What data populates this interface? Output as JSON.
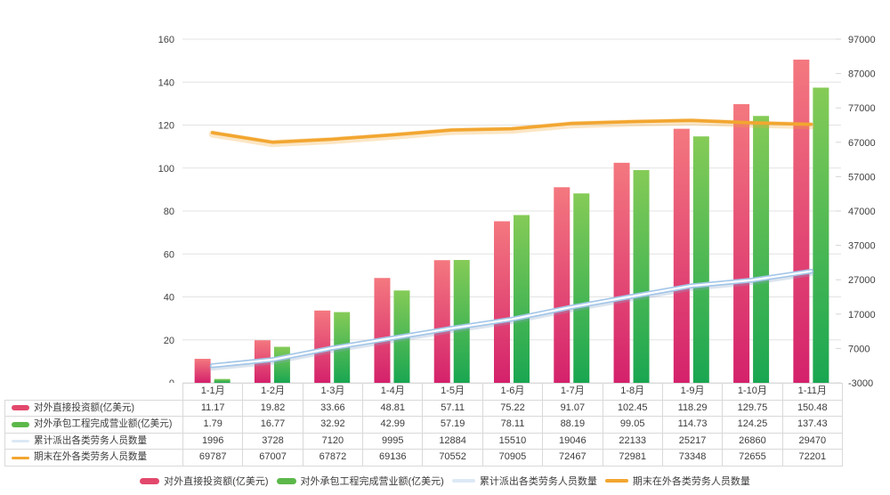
{
  "chart_data": {
    "type": "combo",
    "title": "",
    "categories": [
      "1-1月",
      "1-2月",
      "1-3月",
      "1-4月",
      "1-5月",
      "1-6月",
      "1-7月",
      "1-8月",
      "1-9月",
      "1-10月",
      "1-11月"
    ],
    "series": [
      {
        "name": "对外直接投资额(亿美元)",
        "type": "bar",
        "axis": "left",
        "values": [
          11.17,
          19.82,
          33.66,
          48.81,
          57.11,
          75.22,
          91.07,
          102.45,
          118.29,
          129.75,
          150.48
        ],
        "color_top": "#F4787F",
        "color_bottom": "#D4216B",
        "swatch": "#E2486C"
      },
      {
        "name": "对外承包工程完成营业额(亿美元)",
        "type": "bar",
        "axis": "left",
        "values": [
          1.79,
          16.77,
          32.92,
          42.99,
          57.19,
          78.11,
          88.19,
          99.05,
          114.73,
          124.25,
          137.43
        ],
        "color_top": "#85CB57",
        "color_bottom": "#19A651",
        "swatch": "#5CB84A"
      },
      {
        "name": "累计派出各类劳务人员数量",
        "type": "line",
        "axis": "right",
        "line_style": "ribbon",
        "values": [
          1996,
          3728,
          7120,
          9995,
          12884,
          15510,
          19046,
          22133,
          25217,
          26860,
          29470
        ],
        "color": "#A3C6E8",
        "core": "#FFFFFF",
        "swatch": "#DCE9F6"
      },
      {
        "name": "期末在外各类劳务人员数量",
        "type": "line",
        "axis": "right",
        "line_style": "glow",
        "values": [
          69787,
          67007,
          67872,
          69136,
          70552,
          70905,
          72467,
          72981,
          73348,
          72655,
          72201
        ],
        "color": "#F2A630",
        "swatch": "#F2A630"
      }
    ],
    "left_axis": {
      "min": 0,
      "max": 160,
      "step": 20,
      "tick_labels": [
        "0",
        "20",
        "40",
        "60",
        "80",
        "100",
        "120",
        "140",
        "160"
      ]
    },
    "right_axis": {
      "min": -3000,
      "max": 97000,
      "step": 10000,
      "tick_labels": [
        "-3000",
        "7000",
        "17000",
        "27000",
        "37000",
        "47000",
        "57000",
        "67000",
        "77000",
        "87000",
        "97000"
      ]
    },
    "grid": true,
    "grid_color": "#e3e3e3",
    "legend_position": "bottom"
  }
}
